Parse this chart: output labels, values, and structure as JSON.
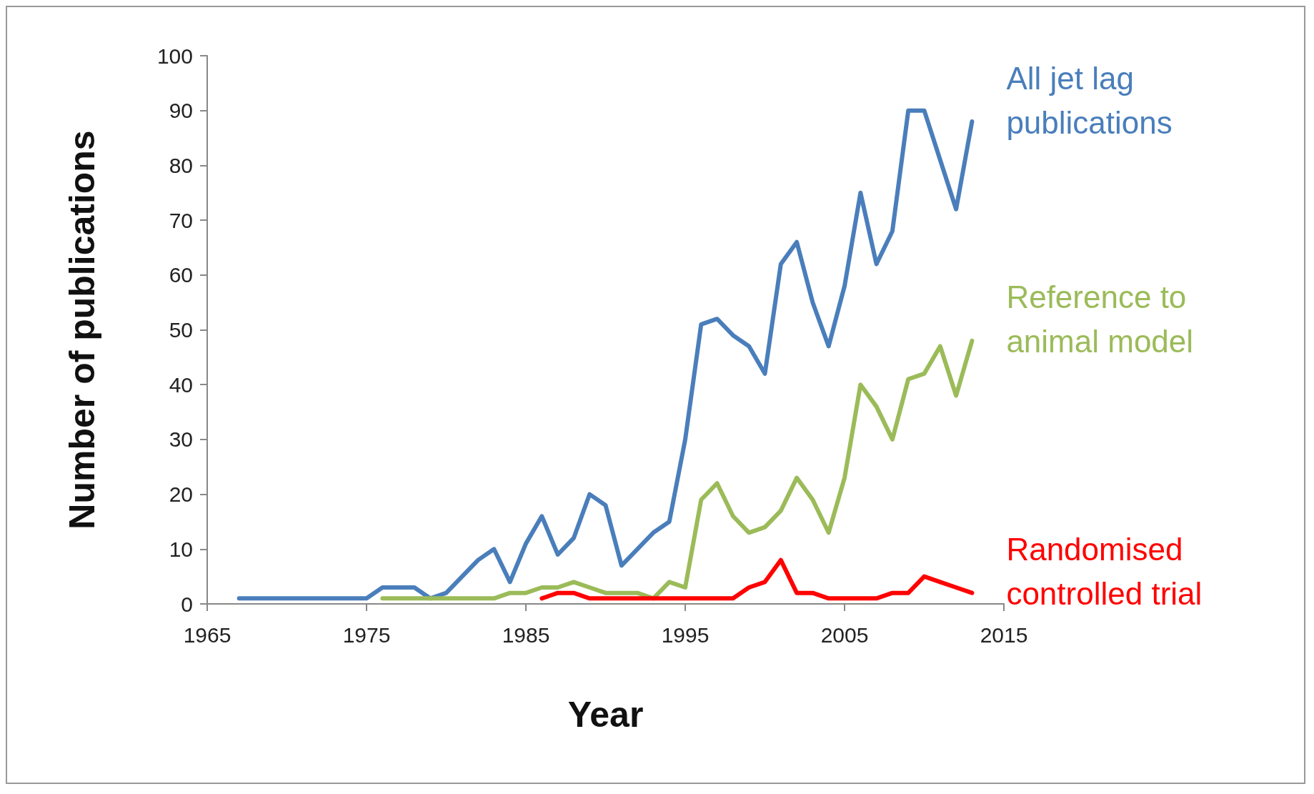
{
  "chart_data": {
    "type": "line",
    "xlabel": "Year",
    "ylabel": "Number of publications",
    "xlim": [
      1965,
      2015
    ],
    "xticks": [
      1965,
      1975,
      1985,
      1995,
      2005,
      2015
    ],
    "ylim": [
      0,
      100
    ],
    "yticks": [
      0,
      10,
      20,
      30,
      40,
      50,
      60,
      70,
      80,
      90,
      100
    ],
    "marker": "none",
    "line_style": "solid",
    "series": [
      {
        "name": "All jet lag publications",
        "color": "#4a7ebb",
        "x": [
          1967,
          1968,
          1969,
          1970,
          1971,
          1972,
          1973,
          1974,
          1975,
          1976,
          1977,
          1978,
          1979,
          1980,
          1981,
          1982,
          1983,
          1984,
          1985,
          1986,
          1987,
          1988,
          1989,
          1990,
          1991,
          1992,
          1993,
          1994,
          1995,
          1996,
          1997,
          1998,
          1999,
          2000,
          2001,
          2002,
          2003,
          2004,
          2005,
          2006,
          2007,
          2008,
          2009,
          2010,
          2011,
          2012,
          2013
        ],
        "values": [
          1,
          1,
          1,
          1,
          1,
          1,
          1,
          1,
          1,
          3,
          3,
          3,
          1,
          2,
          5,
          8,
          10,
          4,
          11,
          16,
          9,
          12,
          20,
          18,
          7,
          10,
          13,
          15,
          30,
          51,
          52,
          49,
          47,
          42,
          62,
          66,
          55,
          47,
          58,
          75,
          62,
          68,
          90,
          90,
          81,
          72,
          88
        ]
      },
      {
        "name": "Reference to animal model",
        "color": "#9bbb59",
        "x": [
          1976,
          1977,
          1978,
          1979,
          1980,
          1981,
          1982,
          1983,
          1984,
          1985,
          1986,
          1987,
          1988,
          1989,
          1990,
          1991,
          1992,
          1993,
          1994,
          1995,
          1996,
          1997,
          1998,
          1999,
          2000,
          2001,
          2002,
          2003,
          2004,
          2005,
          2006,
          2007,
          2008,
          2009,
          2010,
          2011,
          2012,
          2013
        ],
        "values": [
          1,
          1,
          1,
          1,
          1,
          1,
          1,
          1,
          2,
          2,
          3,
          3,
          4,
          3,
          2,
          2,
          2,
          1,
          4,
          3,
          19,
          22,
          16,
          13,
          14,
          17,
          23,
          19,
          13,
          23,
          40,
          36,
          30,
          41,
          42,
          47,
          38,
          48
        ]
      },
      {
        "name": "Randomised controlled trial",
        "color": "#ff0000",
        "x": [
          1986,
          1987,
          1988,
          1989,
          1990,
          1991,
          1992,
          1993,
          1994,
          1995,
          1996,
          1997,
          1998,
          1999,
          2000,
          2001,
          2002,
          2003,
          2004,
          2005,
          2006,
          2007,
          2008,
          2009,
          2010,
          2011,
          2012,
          2013
        ],
        "values": [
          1,
          2,
          2,
          1,
          1,
          1,
          1,
          1,
          1,
          1,
          1,
          1,
          1,
          3,
          4,
          8,
          2,
          2,
          1,
          1,
          1,
          1,
          2,
          2,
          5,
          4,
          3,
          2
        ]
      }
    ]
  }
}
